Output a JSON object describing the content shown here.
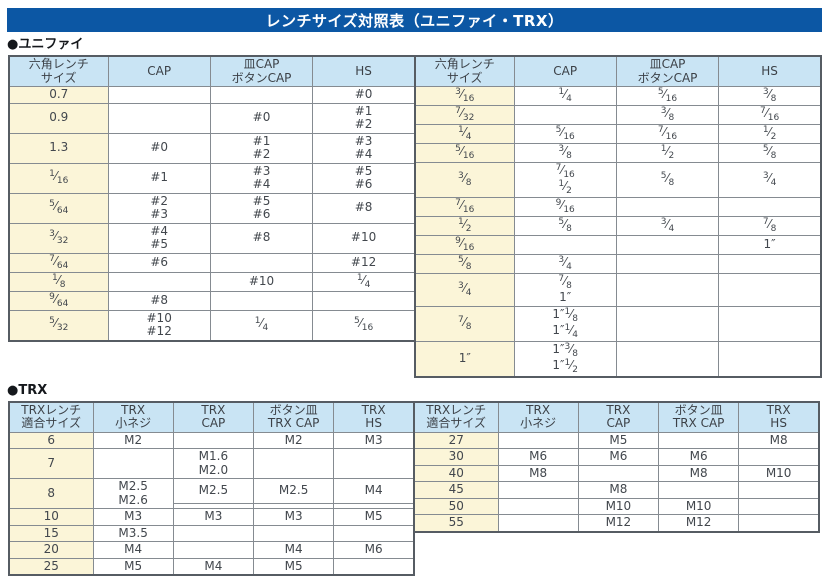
{
  "title": "レンチサイズ対照表（ユニファイ・TRX）",
  "sections": {
    "unified_label": "●ユニファイ",
    "trx_label": "●TRX"
  },
  "colors": {
    "title_bar_bg": "#0c57a4",
    "title_text": "#ffffff",
    "header_bg": "#c9e4f4",
    "row_header_bg": "#fbf5d8",
    "outer_border": "#565c63",
    "inner_border": "#858b91"
  },
  "tables": {
    "uni_left": {
      "columns": [
        "六角レンチ\nサイズ",
        "CAP",
        "皿CAP\nボタンCAP",
        "HS"
      ],
      "rows": [
        {
          "cells": [
            "0.7",
            "",
            "",
            "#0"
          ]
        },
        {
          "cells": [
            "0.9",
            "",
            "#0",
            "#1\n#2"
          ]
        },
        {
          "cells": [
            "1.3",
            "#0",
            "#1\n#2",
            "#3\n#4"
          ]
        },
        {
          "cells": [
            "1/16",
            "#1",
            "#3\n#4",
            "#5\n#6"
          ]
        },
        {
          "cells": [
            "5/64",
            "#2\n#3",
            "#5\n#6",
            "#8"
          ]
        },
        {
          "cells": [
            "3/32",
            "#4\n#5",
            "#8",
            "#10"
          ]
        },
        {
          "cells": [
            "7/64",
            "#6",
            "",
            "#12"
          ]
        },
        {
          "cells": [
            "1/8",
            "",
            "#10",
            "1/4"
          ]
        },
        {
          "cells": [
            "9/64",
            "#8",
            "",
            ""
          ]
        },
        {
          "cells": [
            "5/32",
            "#10\n#12",
            "1/4",
            "5/16"
          ]
        }
      ]
    },
    "uni_right": {
      "columns": [
        "六角レンチ\nサイズ",
        "CAP",
        "皿CAP\nボタンCAP",
        "HS"
      ],
      "rows": [
        {
          "cells": [
            "3/16",
            "1/4",
            "5/16",
            "3/8"
          ]
        },
        {
          "cells": [
            "7/32",
            "",
            "3/8",
            "7/16"
          ]
        },
        {
          "cells": [
            "1/4",
            "5/16",
            "7/16",
            "1/2"
          ]
        },
        {
          "cells": [
            "5/16",
            "3/8",
            "1/2",
            "5/8"
          ]
        },
        {
          "cells": [
            "3/8",
            "7/16\n1/2",
            "5/8",
            "3/4"
          ]
        },
        {
          "cells": [
            "7/16",
            "9/16",
            "",
            ""
          ]
        },
        {
          "cells": [
            "1/2",
            "5/8",
            "3/4",
            "7/8"
          ]
        },
        {
          "cells": [
            "9/16",
            "",
            "",
            "1″"
          ]
        },
        {
          "cells": [
            "5/8",
            "3/4",
            "",
            ""
          ]
        },
        {
          "cells": [
            "3/4",
            "7/8\n1″",
            "",
            ""
          ]
        },
        {
          "cells": [
            "7/8",
            "1″1/8\n1″1/4",
            "",
            ""
          ]
        },
        {
          "cells": [
            "1″",
            "1″3/8\n1″1/2",
            "",
            ""
          ]
        }
      ]
    },
    "trx_left": {
      "columns": [
        "TRXレンチ\n適合サイズ",
        "TRX\n小ネジ",
        "TRX\nCAP",
        "ボタン皿\nTRX CAP",
        "TRX\nHS"
      ],
      "rows": [
        {
          "cells": [
            "6",
            "M2",
            "",
            "M2",
            "M3"
          ]
        },
        {
          "cells": [
            "7",
            "",
            "M1.6\nM2.0",
            "",
            ""
          ]
        },
        {
          "cells": [
            {
              "t": "8",
              "rs": 2
            },
            {
              "t": "M2.5\nM2.6",
              "rs": 2
            },
            "M2.5",
            "M2.5",
            "M4"
          ]
        },
        {
          "cont": true,
          "cells": [
            "",
            "",
            ""
          ]
        },
        {
          "cells": [
            "10",
            "M3",
            "M3",
            "M3",
            "M5"
          ]
        },
        {
          "cells": [
            "15",
            "M3.5",
            "",
            "",
            ""
          ]
        },
        {
          "cells": [
            "20",
            "M4",
            "",
            "M4",
            "M6"
          ]
        },
        {
          "cells": [
            "25",
            "M5",
            "M4",
            "M5",
            ""
          ]
        }
      ]
    },
    "trx_right": {
      "columns": [
        "TRXレンチ\n適合サイズ",
        "TRX\n小ネジ",
        "TRX\nCAP",
        "ボタン皿\nTRX CAP",
        "TRX\nHS"
      ],
      "rows": [
        {
          "cells": [
            "27",
            "",
            "M5",
            "",
            "M8"
          ]
        },
        {
          "cells": [
            "30",
            "M6",
            "M6",
            "M6",
            ""
          ]
        },
        {
          "cells": [
            "40",
            "M8",
            "",
            "M8",
            "M10"
          ]
        },
        {
          "cells": [
            "45",
            "",
            "M8",
            "",
            ""
          ]
        },
        {
          "cells": [
            "50",
            "",
            "M10",
            "M10",
            ""
          ]
        },
        {
          "cells": [
            "55",
            "",
            "M12",
            "M12",
            ""
          ]
        }
      ]
    }
  }
}
